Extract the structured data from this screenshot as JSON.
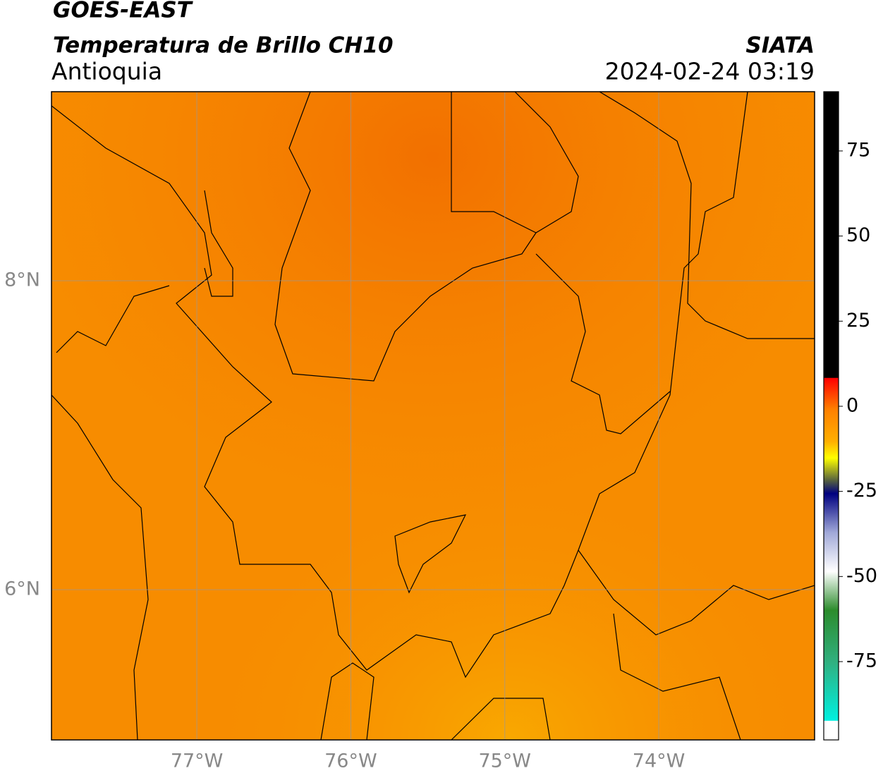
{
  "header": {
    "title": "GOES-EAST",
    "subtitle": "Temperatura de Brillo CH10",
    "region": "Antioquia",
    "source": "SIATA",
    "datetime": "2024-02-24 03:19"
  },
  "map": {
    "lonlim": [
      -77.944,
      -72.988
    ],
    "latlim": [
      5.027,
      9.224
    ],
    "lon_ticks": [
      {
        "value": -77,
        "label": "77°W"
      },
      {
        "value": -76,
        "label": "76°W"
      },
      {
        "value": -75,
        "label": "75°W"
      },
      {
        "value": -74,
        "label": "74°W"
      }
    ],
    "lat_ticks": [
      {
        "value": 8,
        "label": "8°N"
      },
      {
        "value": 6,
        "label": "6°N"
      }
    ]
  },
  "colorbar": {
    "lim": [
      -98,
      92.4
    ],
    "ticks": [
      75,
      50,
      25,
      0,
      -25,
      -50,
      -75
    ]
  }
}
